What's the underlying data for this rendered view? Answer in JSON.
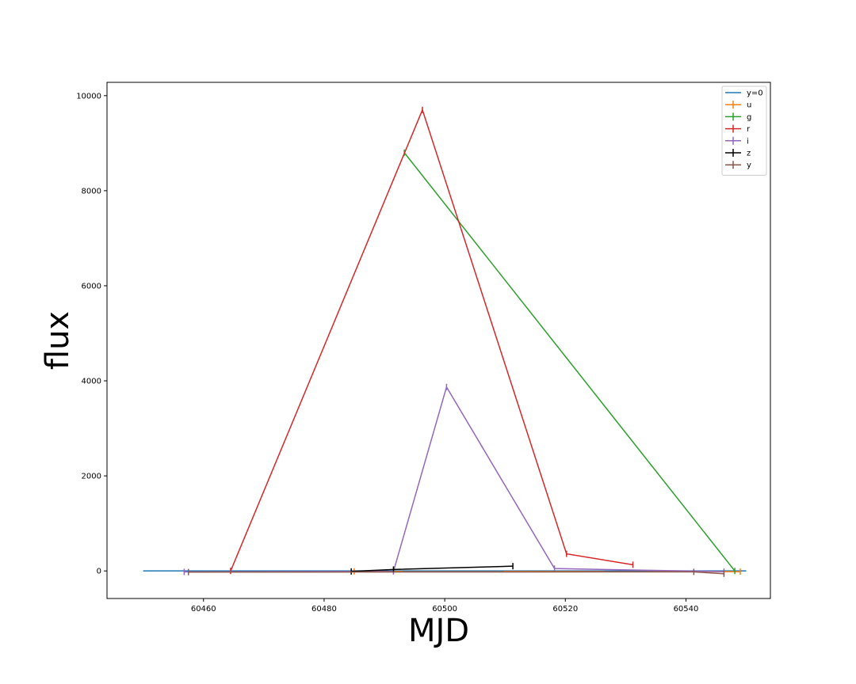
{
  "chart_data": {
    "type": "line",
    "title": "",
    "xlabel": "MJD",
    "ylabel": "flux",
    "xlim": [
      60444,
      60554
    ],
    "ylim": [
      -580,
      10280
    ],
    "x_ticks": [
      60460,
      60480,
      60500,
      60520,
      60540
    ],
    "y_ticks": [
      0,
      2000,
      4000,
      6000,
      8000,
      10000
    ],
    "grid": false,
    "legend_position": "top-right",
    "series": [
      {
        "name": "y=0",
        "color": "#1f77b4",
        "error_bars": false,
        "x": [
          60450,
          60550
        ],
        "y": [
          0,
          0
        ]
      },
      {
        "name": "u",
        "color": "#ff7f0e",
        "error_bars": true,
        "x": [
          60485,
          60549
        ],
        "y": [
          -10,
          -15
        ]
      },
      {
        "name": "g",
        "color": "#2ca02c",
        "error_bars": true,
        "x": [
          60493.3,
          60548.1
        ],
        "y": [
          8800,
          0
        ]
      },
      {
        "name": "r",
        "color": "#d62728",
        "error_bars": true,
        "x": [
          60464.5,
          60496.3,
          60520.2,
          60531.2
        ],
        "y": [
          0,
          9700,
          360,
          130
        ]
      },
      {
        "name": "i",
        "color": "#9467bd",
        "error_bars": true,
        "x": [
          60456.8,
          60491.5,
          60500.3,
          60518.2,
          60546.3
        ],
        "y": [
          -20,
          -10,
          3870,
          50,
          -15
        ]
      },
      {
        "name": "z",
        "color": "#000000",
        "error_bars": true,
        "x": [
          60484.5,
          60491.5,
          60511.3
        ],
        "y": [
          -10,
          30,
          100
        ]
      },
      {
        "name": "y",
        "color": "#8c564b",
        "error_bars": true,
        "x": [
          60457.5,
          60541.3,
          60546.3
        ],
        "y": [
          -25,
          -20,
          -60
        ]
      }
    ]
  }
}
